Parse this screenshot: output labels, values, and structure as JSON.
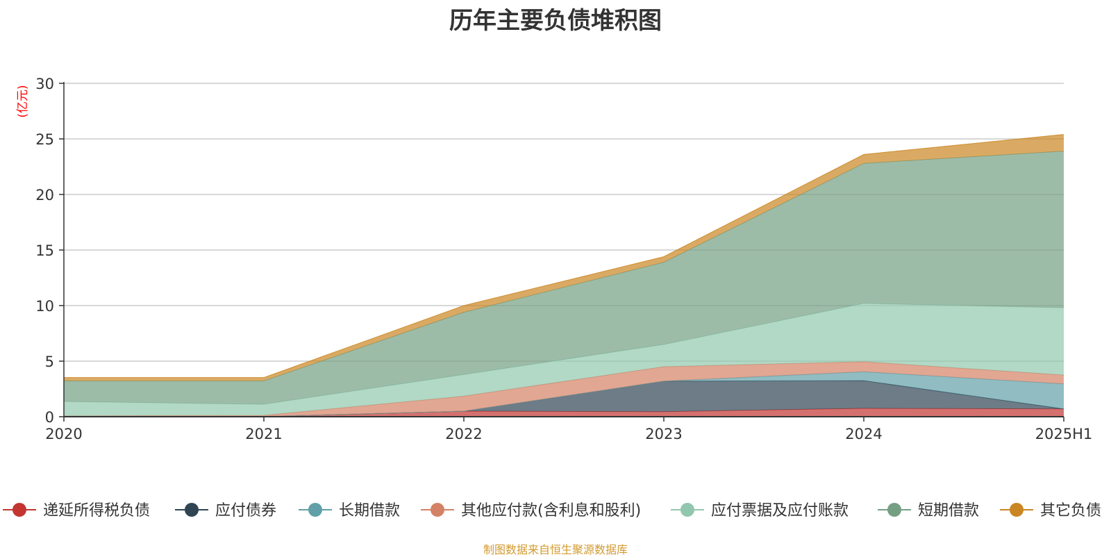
{
  "chart_data": {
    "type": "area",
    "stacked": true,
    "title": "历年主要负债堆积图",
    "ylabel": "(亿元)",
    "xlabel": "",
    "categories": [
      "2020",
      "2021",
      "2022",
      "2023",
      "2024",
      "2025H1"
    ],
    "ylim": [
      0,
      30
    ],
    "yticks": [
      0,
      5,
      10,
      15,
      20,
      25,
      30
    ],
    "grid": true,
    "legend_position": "bottom",
    "series": [
      {
        "name": "递延所得税负债",
        "color": "#c23531",
        "values": [
          0.02,
          0.02,
          0.5,
          0.45,
          0.75,
          0.7
        ]
      },
      {
        "name": "应付债券",
        "color": "#2f4554",
        "values": [
          0,
          0,
          0,
          2.75,
          2.5,
          0
        ]
      },
      {
        "name": "长期借款",
        "color": "#61a0a8",
        "values": [
          0,
          0,
          0,
          0,
          0.8,
          2.25
        ]
      },
      {
        "name": "其他应付款(含利息和股利)",
        "color": "#d48265",
        "values": [
          0.05,
          0.1,
          1.35,
          1.3,
          0.9,
          0.8
        ]
      },
      {
        "name": "应付票据及应付账款",
        "color": "#91c7ae",
        "values": [
          1.3,
          1.0,
          1.95,
          2.0,
          5.25,
          6.05
        ]
      },
      {
        "name": "短期借款",
        "color": "#749f83",
        "values": [
          1.85,
          2.1,
          5.6,
          7.4,
          12.6,
          14.1
        ]
      },
      {
        "name": "其它负债",
        "color": "#ca8622",
        "values": [
          0.3,
          0.3,
          0.6,
          0.5,
          0.8,
          1.5
        ]
      }
    ]
  },
  "source_note": "制图数据来自恒生聚源数据库"
}
